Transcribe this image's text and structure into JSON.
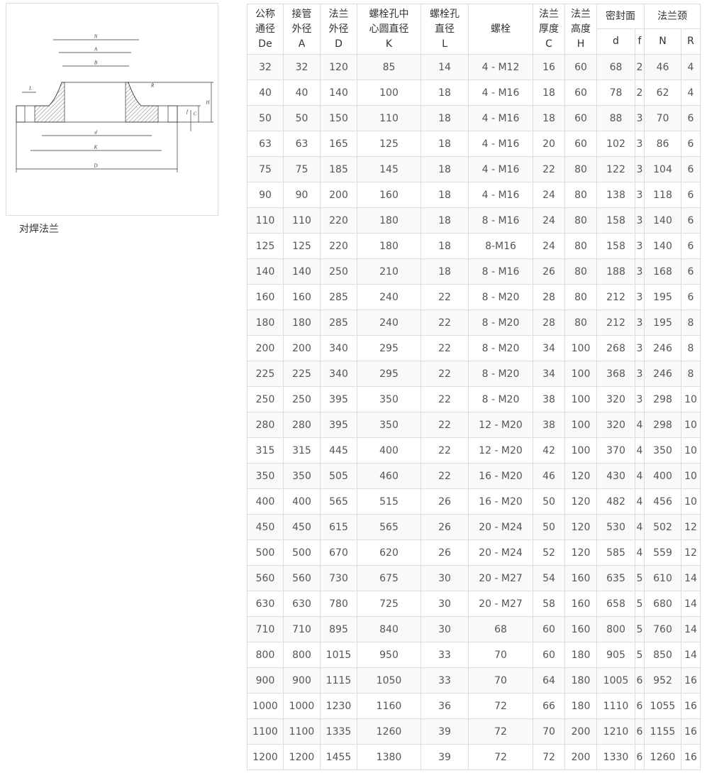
{
  "figure": {
    "labels": [
      "N",
      "A",
      "B",
      "R",
      "L",
      "d",
      "K",
      "D",
      "f",
      "C",
      "H"
    ]
  },
  "caption": "对焊法兰",
  "table": {
    "headers": [
      [
        "公称",
        "通径",
        "De"
      ],
      [
        "接管",
        "外径",
        "A"
      ],
      [
        "法兰",
        "外径",
        "D"
      ],
      [
        "螺栓孔中",
        "心圆直径",
        "K"
      ],
      [
        "螺栓孔",
        "直径",
        "L"
      ],
      [
        "螺栓"
      ],
      [
        "法兰",
        "厚度",
        "C"
      ],
      [
        "法兰",
        "高度",
        "H"
      ]
    ],
    "groups": [
      {
        "title": "密封面",
        "subs": [
          "d",
          "f"
        ]
      },
      {
        "title": "法兰颈",
        "subs": [
          "N",
          "R"
        ]
      }
    ],
    "rows": [
      [
        32,
        32,
        120,
        85,
        14,
        "4 - M12",
        16,
        60,
        68,
        2,
        46,
        4
      ],
      [
        40,
        40,
        140,
        100,
        18,
        "4 - M16",
        18,
        60,
        78,
        2,
        62,
        4
      ],
      [
        50,
        50,
        150,
        110,
        18,
        "4 - M16",
        18,
        60,
        88,
        3,
        70,
        6
      ],
      [
        63,
        63,
        165,
        125,
        18,
        "4 - M16",
        20,
        60,
        102,
        3,
        86,
        6
      ],
      [
        75,
        75,
        185,
        145,
        18,
        "4 - M16",
        22,
        80,
        122,
        3,
        104,
        6
      ],
      [
        90,
        90,
        200,
        160,
        18,
        "4 - M16",
        24,
        80,
        138,
        3,
        118,
        6
      ],
      [
        110,
        110,
        220,
        180,
        18,
        "8 - M16",
        24,
        80,
        158,
        3,
        140,
        6
      ],
      [
        125,
        125,
        220,
        180,
        18,
        "8-M16",
        24,
        80,
        158,
        3,
        140,
        6
      ],
      [
        140,
        140,
        250,
        210,
        18,
        "8 - M16",
        26,
        80,
        188,
        3,
        168,
        6
      ],
      [
        160,
        160,
        285,
        240,
        22,
        "8 - M20",
        28,
        80,
        212,
        3,
        195,
        6
      ],
      [
        180,
        180,
        285,
        240,
        22,
        "8 - M20",
        28,
        80,
        212,
        3,
        195,
        8
      ],
      [
        200,
        200,
        340,
        295,
        22,
        "8 - M20",
        34,
        100,
        268,
        3,
        246,
        8
      ],
      [
        225,
        225,
        340,
        295,
        22,
        "8 - M20",
        34,
        100,
        368,
        3,
        246,
        8
      ],
      [
        250,
        250,
        395,
        350,
        22,
        "8 - M20",
        38,
        100,
        320,
        3,
        298,
        10
      ],
      [
        280,
        280,
        395,
        350,
        22,
        "12 - M20",
        38,
        100,
        320,
        4,
        298,
        10
      ],
      [
        315,
        315,
        445,
        400,
        22,
        "12 - M20",
        42,
        100,
        370,
        4,
        350,
        10
      ],
      [
        350,
        350,
        505,
        460,
        22,
        "16 - M20",
        46,
        120,
        430,
        4,
        400,
        10
      ],
      [
        400,
        400,
        565,
        515,
        26,
        "16 - M20",
        50,
        120,
        482,
        4,
        456,
        10
      ],
      [
        450,
        450,
        615,
        565,
        26,
        "20 - M24",
        50,
        120,
        530,
        4,
        502,
        12
      ],
      [
        500,
        500,
        670,
        620,
        26,
        "20 - M24",
        52,
        120,
        585,
        4,
        559,
        12
      ],
      [
        560,
        560,
        730,
        675,
        30,
        "20 - M27",
        54,
        160,
        635,
        5,
        610,
        14
      ],
      [
        630,
        630,
        780,
        725,
        30,
        "20 - M27",
        58,
        160,
        658,
        5,
        680,
        14
      ],
      [
        710,
        710,
        895,
        840,
        30,
        68,
        60,
        160,
        800,
        5,
        760,
        14
      ],
      [
        800,
        800,
        1015,
        950,
        33,
        70,
        60,
        180,
        905,
        5,
        850,
        14
      ],
      [
        900,
        900,
        1115,
        1050,
        33,
        70,
        64,
        180,
        1005,
        6,
        952,
        16
      ],
      [
        1000,
        1000,
        1230,
        1160,
        36,
        72,
        66,
        180,
        1110,
        6,
        1055,
        16
      ],
      [
        1100,
        1100,
        1335,
        1260,
        39,
        72,
        70,
        200,
        1210,
        6,
        1155,
        16
      ],
      [
        1200,
        1200,
        1455,
        1380,
        39,
        72,
        72,
        200,
        1330,
        6,
        1260,
        16
      ]
    ]
  }
}
